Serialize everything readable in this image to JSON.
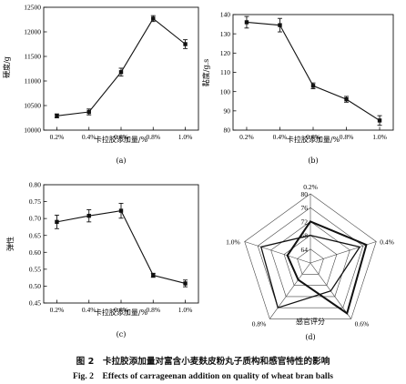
{
  "caption": {
    "zh": "图 2　卡拉胶添加量对富含小麦麸皮粉丸子质构和感官特性的影响",
    "en": "Fig. 2　Effects of carrageenan addition on quality of wheat bran balls"
  },
  "chart_data": [
    {
      "type": "line",
      "panel": "(a)",
      "xlabel": "卡拉胶添加量/%",
      "ylabel": "硬度/g",
      "categories": [
        "0.2%",
        "0.4%",
        "0.6%",
        "0.8%",
        "1.0%"
      ],
      "values": [
        10290,
        10370,
        11180,
        12270,
        11750
      ],
      "errors": [
        40,
        60,
        80,
        60,
        90
      ],
      "ylim": [
        10000,
        12500
      ],
      "yticks": [
        10000,
        10500,
        11000,
        11500,
        12000,
        12500
      ]
    },
    {
      "type": "line",
      "panel": "(b)",
      "xlabel": "卡拉胶添加量/%",
      "ylabel": "黏度/g.s",
      "categories": [
        "0.2%",
        "0.4%",
        "0.6%",
        "0.8%",
        "1.0%"
      ],
      "values": [
        136,
        134.5,
        103,
        96,
        85
      ],
      "errors": [
        3,
        3.5,
        1.5,
        1.5,
        2.5
      ],
      "ylim": [
        80,
        140
      ],
      "yticks": [
        80,
        90,
        100,
        110,
        120,
        130,
        140
      ]
    },
    {
      "type": "line",
      "panel": "(c)",
      "xlabel": "卡拉胶添加量/%",
      "ylabel": "弹性",
      "categories": [
        "0.2%",
        "0.4%",
        "0.6%",
        "0.8%",
        "1.0%"
      ],
      "values": [
        0.69,
        0.708,
        0.723,
        0.532,
        0.508
      ],
      "errors": [
        0.02,
        0.018,
        0.022,
        0.006,
        0.01
      ],
      "ylim": [
        0.45,
        0.8
      ],
      "yticks": [
        0.45,
        0.5,
        0.55,
        0.6,
        0.65,
        0.7,
        0.75,
        0.8
      ],
      "ytick_labels": [
        "0.45",
        "0.50",
        "0.55",
        "0.60",
        "0.65",
        "0.70",
        "0.75",
        "0.80"
      ]
    },
    {
      "type": "radar",
      "panel": "(d)",
      "xlabel": "感官评分",
      "axes": [
        "0.2%",
        "0.4%",
        "0.6%",
        "0.8%",
        "1.0%"
      ],
      "range": [
        60,
        80
      ],
      "rings": [
        64,
        68,
        72,
        76,
        80
      ],
      "ring_labels": [
        "64",
        "68",
        "72",
        "76",
        "80"
      ],
      "series": [
        {
          "values": [
            72,
            77,
            78,
            66,
            67
          ]
        },
        {
          "values": [
            68,
            75,
            70,
            76,
            75
          ]
        }
      ]
    }
  ]
}
